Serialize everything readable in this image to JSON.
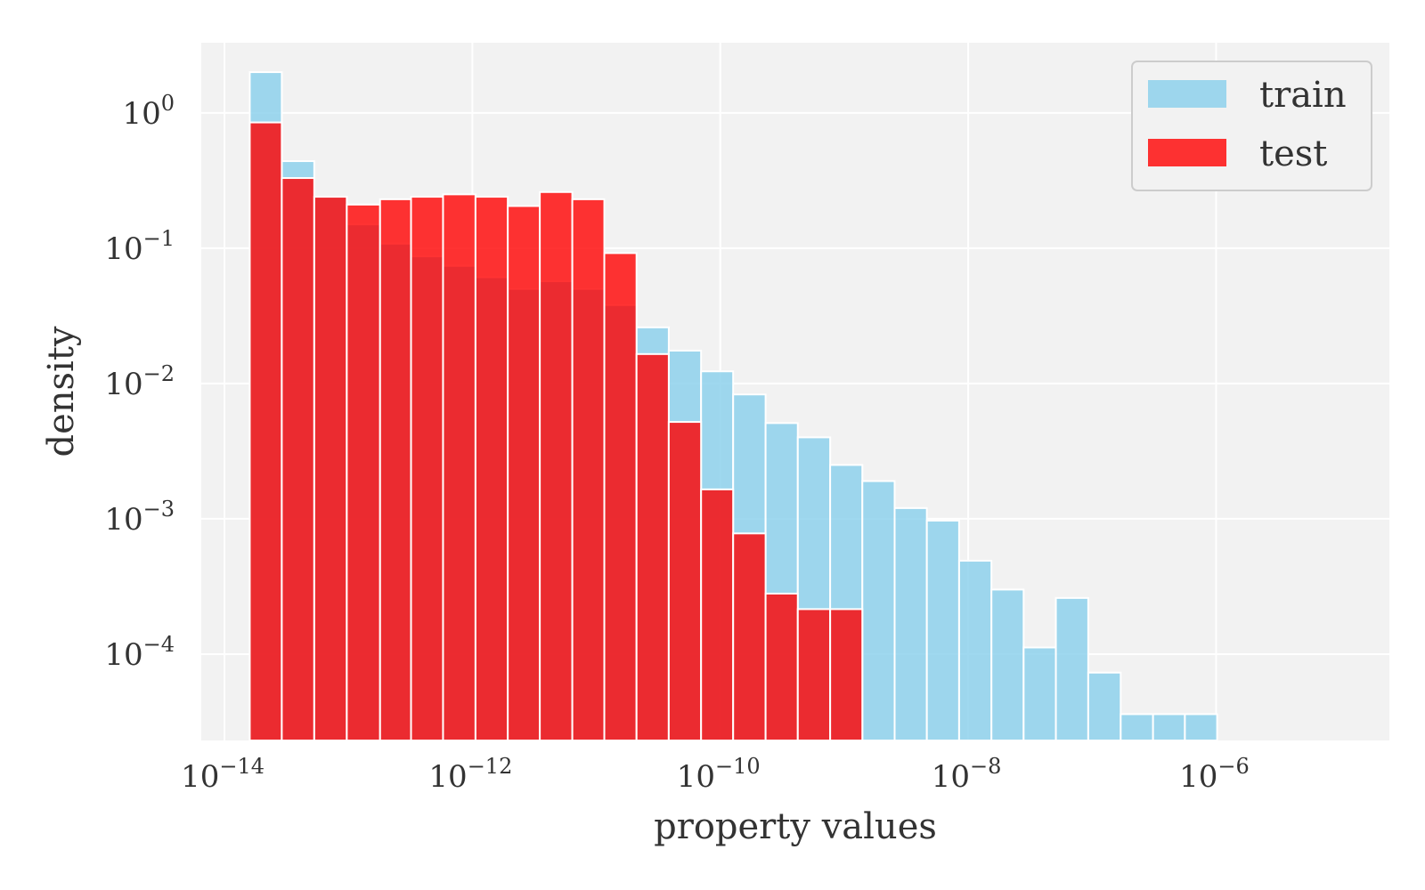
{
  "chart_data": {
    "type": "bar",
    "xlabel": "property values",
    "ylabel": "density",
    "x_scale": "log",
    "y_scale": "log",
    "xlim": [
      6.5e-15,
      2.5e-05
    ],
    "ylim": [
      2.3e-05,
      3.3
    ],
    "x_ticks": [
      {
        "base": "10",
        "exp": "−14",
        "value": 1e-14
      },
      {
        "base": "10",
        "exp": "−12",
        "value": 1e-12
      },
      {
        "base": "10",
        "exp": "−10",
        "value": 1e-10
      },
      {
        "base": "10",
        "exp": "−8",
        "value": 1e-08
      },
      {
        "base": "10",
        "exp": "−6",
        "value": 1e-06
      }
    ],
    "y_ticks": [
      {
        "base": "10",
        "exp": "0",
        "value": 1
      },
      {
        "base": "10",
        "exp": "−1",
        "value": 0.1
      },
      {
        "base": "10",
        "exp": "−2",
        "value": 0.01
      },
      {
        "base": "10",
        "exp": "−3",
        "value": 0.001
      },
      {
        "base": "10",
        "exp": "−4",
        "value": 0.0001
      }
    ],
    "grid": true,
    "legend_position": "top-right",
    "bin_edges": [
      1.6e-14,
      2.9e-14,
      5.3e-14,
      9.7e-14,
      1.8e-13,
      3.2e-13,
      5.8e-13,
      1.06e-12,
      1.93e-12,
      3.5e-12,
      6.4e-12,
      1.16e-11,
      2.11e-11,
      3.84e-11,
      7e-11,
      1.27e-10,
      2.32e-10,
      4.22e-10,
      7.7e-10,
      1.4e-09,
      2.55e-09,
      4.64e-09,
      8.45e-09,
      1.54e-08,
      2.8e-08,
      5.1e-08,
      9.3e-08,
      1.7e-07,
      3.1e-07,
      5.6e-07,
      1.02e-06,
      1.86e-06,
      3.4e-06,
      6.2e-06
    ],
    "series": [
      {
        "name": "train",
        "color": "#87ceeb",
        "values": [
          2.0,
          0.44,
          0.24,
          0.15,
          0.108,
          0.087,
          0.074,
          0.061,
          0.05,
          0.057,
          0.05,
          0.038,
          0.026,
          0.0175,
          0.0123,
          0.0083,
          0.0051,
          0.004,
          0.0025,
          0.0019,
          0.0012,
          0.00097,
          0.00049,
          0.0003,
          0.000112,
          0.00026,
          7.3e-05,
          3.6e-05,
          3.6e-05,
          3.6e-05
        ]
      },
      {
        "name": "test",
        "color": "#ff0000",
        "values": [
          0.85,
          0.33,
          0.24,
          0.21,
          0.23,
          0.24,
          0.25,
          0.24,
          0.205,
          0.26,
          0.23,
          0.092,
          0.0165,
          0.0052,
          0.00165,
          0.00078,
          0.00028,
          0.000215,
          0.000215
        ]
      }
    ]
  },
  "legend": {
    "items": [
      {
        "label": "train",
        "color": "#87ceeb"
      },
      {
        "label": "test",
        "color": "#ff0000"
      }
    ]
  }
}
